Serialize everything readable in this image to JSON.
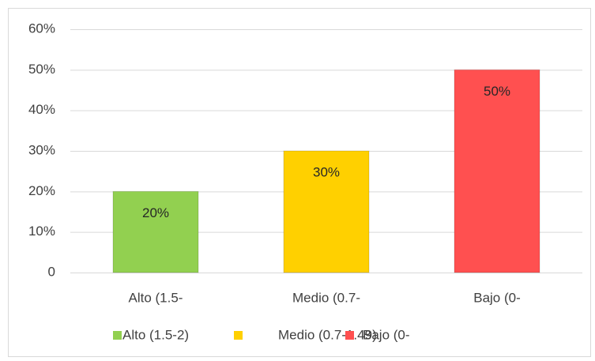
{
  "chart_data": {
    "type": "bar",
    "categories": [
      "Alto (1.5-",
      "Medio (0.7-",
      "Bajo (0-"
    ],
    "values": [
      20,
      30,
      50
    ],
    "value_labels": [
      "20%",
      "30%",
      "50%"
    ],
    "colors": [
      "#92d050",
      "#ffd000",
      "#ff5050"
    ],
    "legend": [
      "Alto (1.5-2)",
      "Medio (0.7-1.49)",
      "Bajo (0-"
    ],
    "ylim": [
      0,
      60
    ],
    "yticks": [
      0,
      {
        "value": 10,
        "label": "10%"
      },
      {
        "value": 20,
        "label": "20%"
      },
      {
        "value": 30,
        "label": "30%"
      },
      {
        "value": 40,
        "label": "40%"
      },
      {
        "value": 50,
        "label": "50%"
      },
      {
        "value": 60,
        "label": "60%"
      }
    ],
    "grid": true
  }
}
